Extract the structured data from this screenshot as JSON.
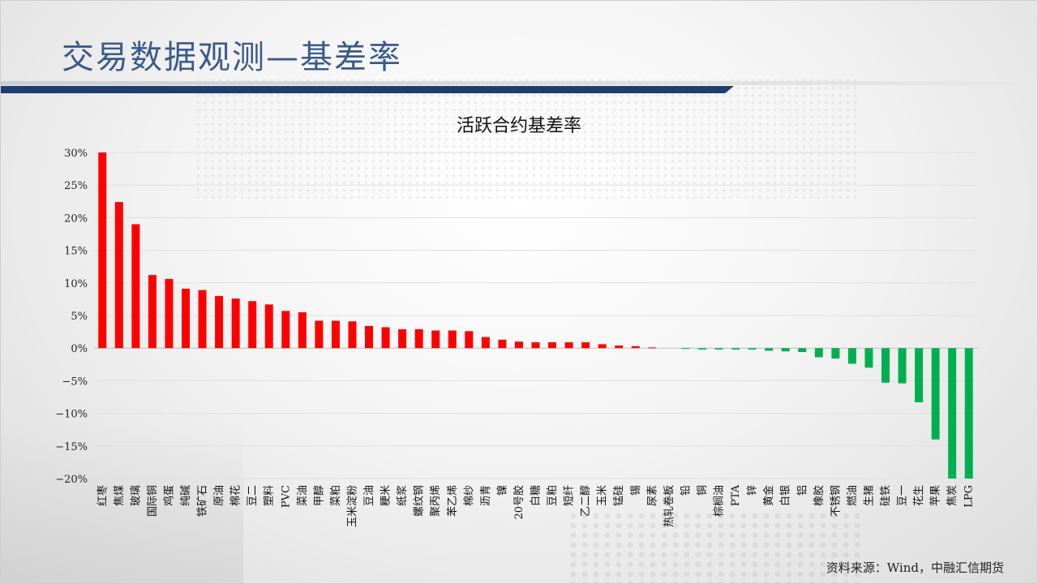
{
  "page": {
    "title": "交易数据观测—基差率",
    "source_note": "资料来源：Wind，中融汇信期货"
  },
  "colors": {
    "positive": "#ff0000",
    "negative": "#00b050",
    "title_blue": "#3b5a8a",
    "bar_navy": "#1f3e6e"
  },
  "chart_data": {
    "type": "bar",
    "title": "活跃合约基差率",
    "xlabel": "",
    "ylabel": "",
    "ylim": [
      -0.2,
      0.3
    ],
    "yticks": [
      0.3,
      0.25,
      0.2,
      0.15,
      0.1,
      0.05,
      0,
      -0.05,
      -0.1,
      -0.15,
      -0.2
    ],
    "ytick_labels": [
      "30%",
      "25%",
      "20%",
      "15%",
      "10%",
      "5%",
      "0%",
      "−5%",
      "−10%",
      "−15%",
      "−20%"
    ],
    "grid": true,
    "legend": "none",
    "categories": [
      "红枣",
      "焦煤",
      "玻璃",
      "国际铜",
      "鸡蛋",
      "纯碱",
      "铁矿石",
      "原油",
      "棉花",
      "豆二",
      "塑料",
      "PVC",
      "菜油",
      "甲醇",
      "菜粕",
      "玉米淀粉",
      "豆油",
      "粳米",
      "纸浆",
      "螺纹钢",
      "聚丙烯",
      "苯乙烯",
      "棉纱",
      "沥青",
      "镍",
      "20号胶",
      "白糖",
      "豆粕",
      "短纤",
      "乙二醇",
      "玉米",
      "锰硅",
      "锡",
      "尿素",
      "热轧卷板",
      "铅",
      "铜",
      "棕榈油",
      "PTA",
      "锌",
      "黄金",
      "白银",
      "铝",
      "橡胶",
      "不锈钢",
      "燃油",
      "生猪",
      "硅铁",
      "豆一",
      "花生",
      "苹果",
      "焦炭",
      "LPG"
    ],
    "values": [
      0.3,
      0.224,
      0.19,
      0.112,
      0.106,
      0.091,
      0.089,
      0.08,
      0.076,
      0.072,
      0.067,
      0.057,
      0.055,
      0.042,
      0.042,
      0.041,
      0.034,
      0.032,
      0.029,
      0.029,
      0.027,
      0.027,
      0.026,
      0.017,
      0.013,
      0.01,
      0.009,
      0.009,
      0.009,
      0.009,
      0.006,
      0.004,
      0.003,
      0.001,
      0.0,
      -0.001,
      -0.002,
      -0.002,
      -0.002,
      -0.002,
      -0.004,
      -0.005,
      -0.006,
      -0.014,
      -0.016,
      -0.024,
      -0.03,
      -0.053,
      -0.054,
      -0.083,
      -0.14,
      -0.2,
      -0.2
    ]
  }
}
